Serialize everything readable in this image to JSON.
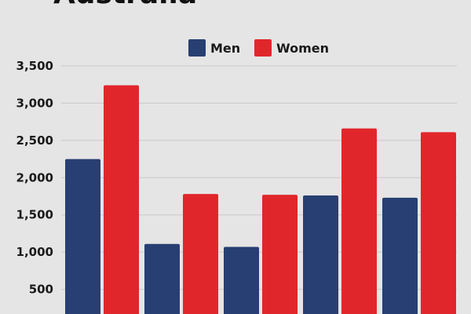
{
  "chart_data": {
    "type": "bar",
    "title": "Australia",
    "categories": [
      "",
      "",
      "",
      "",
      ""
    ],
    "series": [
      {
        "name": "Men",
        "color": "#273f72",
        "values": [
          2250,
          1110,
          1070,
          1760,
          1730
        ]
      },
      {
        "name": "Women",
        "color": "#e1262b",
        "values": [
          3240,
          1780,
          1770,
          2660,
          2610
        ]
      }
    ],
    "ylim": [
      0,
      3500
    ],
    "yticks": [
      500,
      1000,
      1500,
      2000,
      2500,
      3000,
      3500
    ],
    "ytick_labels": [
      "500",
      "1,000",
      "1,500",
      "2,000",
      "2,500",
      "3,000",
      "3,500"
    ],
    "grid": true,
    "legend": "top-center"
  }
}
